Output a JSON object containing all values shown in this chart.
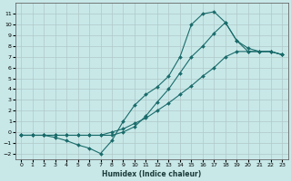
{
  "xlabel": "Humidex (Indice chaleur)",
  "bg_color": "#c8e8e8",
  "grid_color": "#b0c8c8",
  "line_color": "#1a6b6b",
  "xlim": [
    -0.5,
    23.5
  ],
  "ylim": [
    -2.5,
    12.0
  ],
  "xticks": [
    0,
    1,
    2,
    3,
    4,
    5,
    6,
    7,
    8,
    9,
    10,
    11,
    12,
    13,
    14,
    15,
    16,
    17,
    18,
    19,
    20,
    21,
    22,
    23
  ],
  "yticks": [
    -2,
    -1,
    0,
    1,
    2,
    3,
    4,
    5,
    6,
    7,
    8,
    9,
    10,
    11
  ],
  "line1_x": [
    0,
    1,
    2,
    3,
    4,
    5,
    6,
    7,
    8,
    9,
    10,
    11,
    12,
    13,
    14,
    15,
    16,
    17,
    18,
    19,
    20,
    21,
    22,
    23
  ],
  "line1_y": [
    -0.3,
    -0.3,
    -0.3,
    -0.3,
    -0.3,
    -0.3,
    -0.3,
    -0.3,
    0.0,
    0.3,
    0.8,
    1.3,
    2.0,
    2.7,
    3.5,
    4.3,
    5.2,
    6.0,
    7.0,
    7.5,
    7.5,
    7.5,
    7.5,
    7.2
  ],
  "line2_x": [
    0,
    1,
    2,
    3,
    4,
    5,
    6,
    7,
    8,
    9,
    10,
    11,
    12,
    13,
    14,
    15,
    16,
    17,
    18,
    19,
    20,
    21,
    22,
    23
  ],
  "line2_y": [
    -0.3,
    -0.3,
    -0.3,
    -0.5,
    -0.8,
    -1.2,
    -1.5,
    -2.0,
    -0.8,
    1.0,
    2.5,
    3.5,
    4.2,
    5.2,
    7.0,
    10.0,
    11.0,
    11.2,
    10.2,
    8.5,
    7.5,
    7.5,
    7.5,
    7.2
  ],
  "line3_x": [
    0,
    1,
    2,
    3,
    4,
    5,
    6,
    7,
    8,
    9,
    10,
    11,
    12,
    13,
    14,
    15,
    16,
    17,
    18,
    19,
    20,
    21,
    22,
    23
  ],
  "line3_y": [
    -0.3,
    -0.3,
    -0.3,
    -0.3,
    -0.3,
    -0.3,
    -0.3,
    -0.3,
    -0.3,
    0.0,
    0.5,
    1.5,
    2.8,
    4.0,
    5.5,
    7.0,
    8.0,
    9.2,
    10.2,
    8.5,
    7.8,
    7.5,
    7.5,
    7.2
  ]
}
